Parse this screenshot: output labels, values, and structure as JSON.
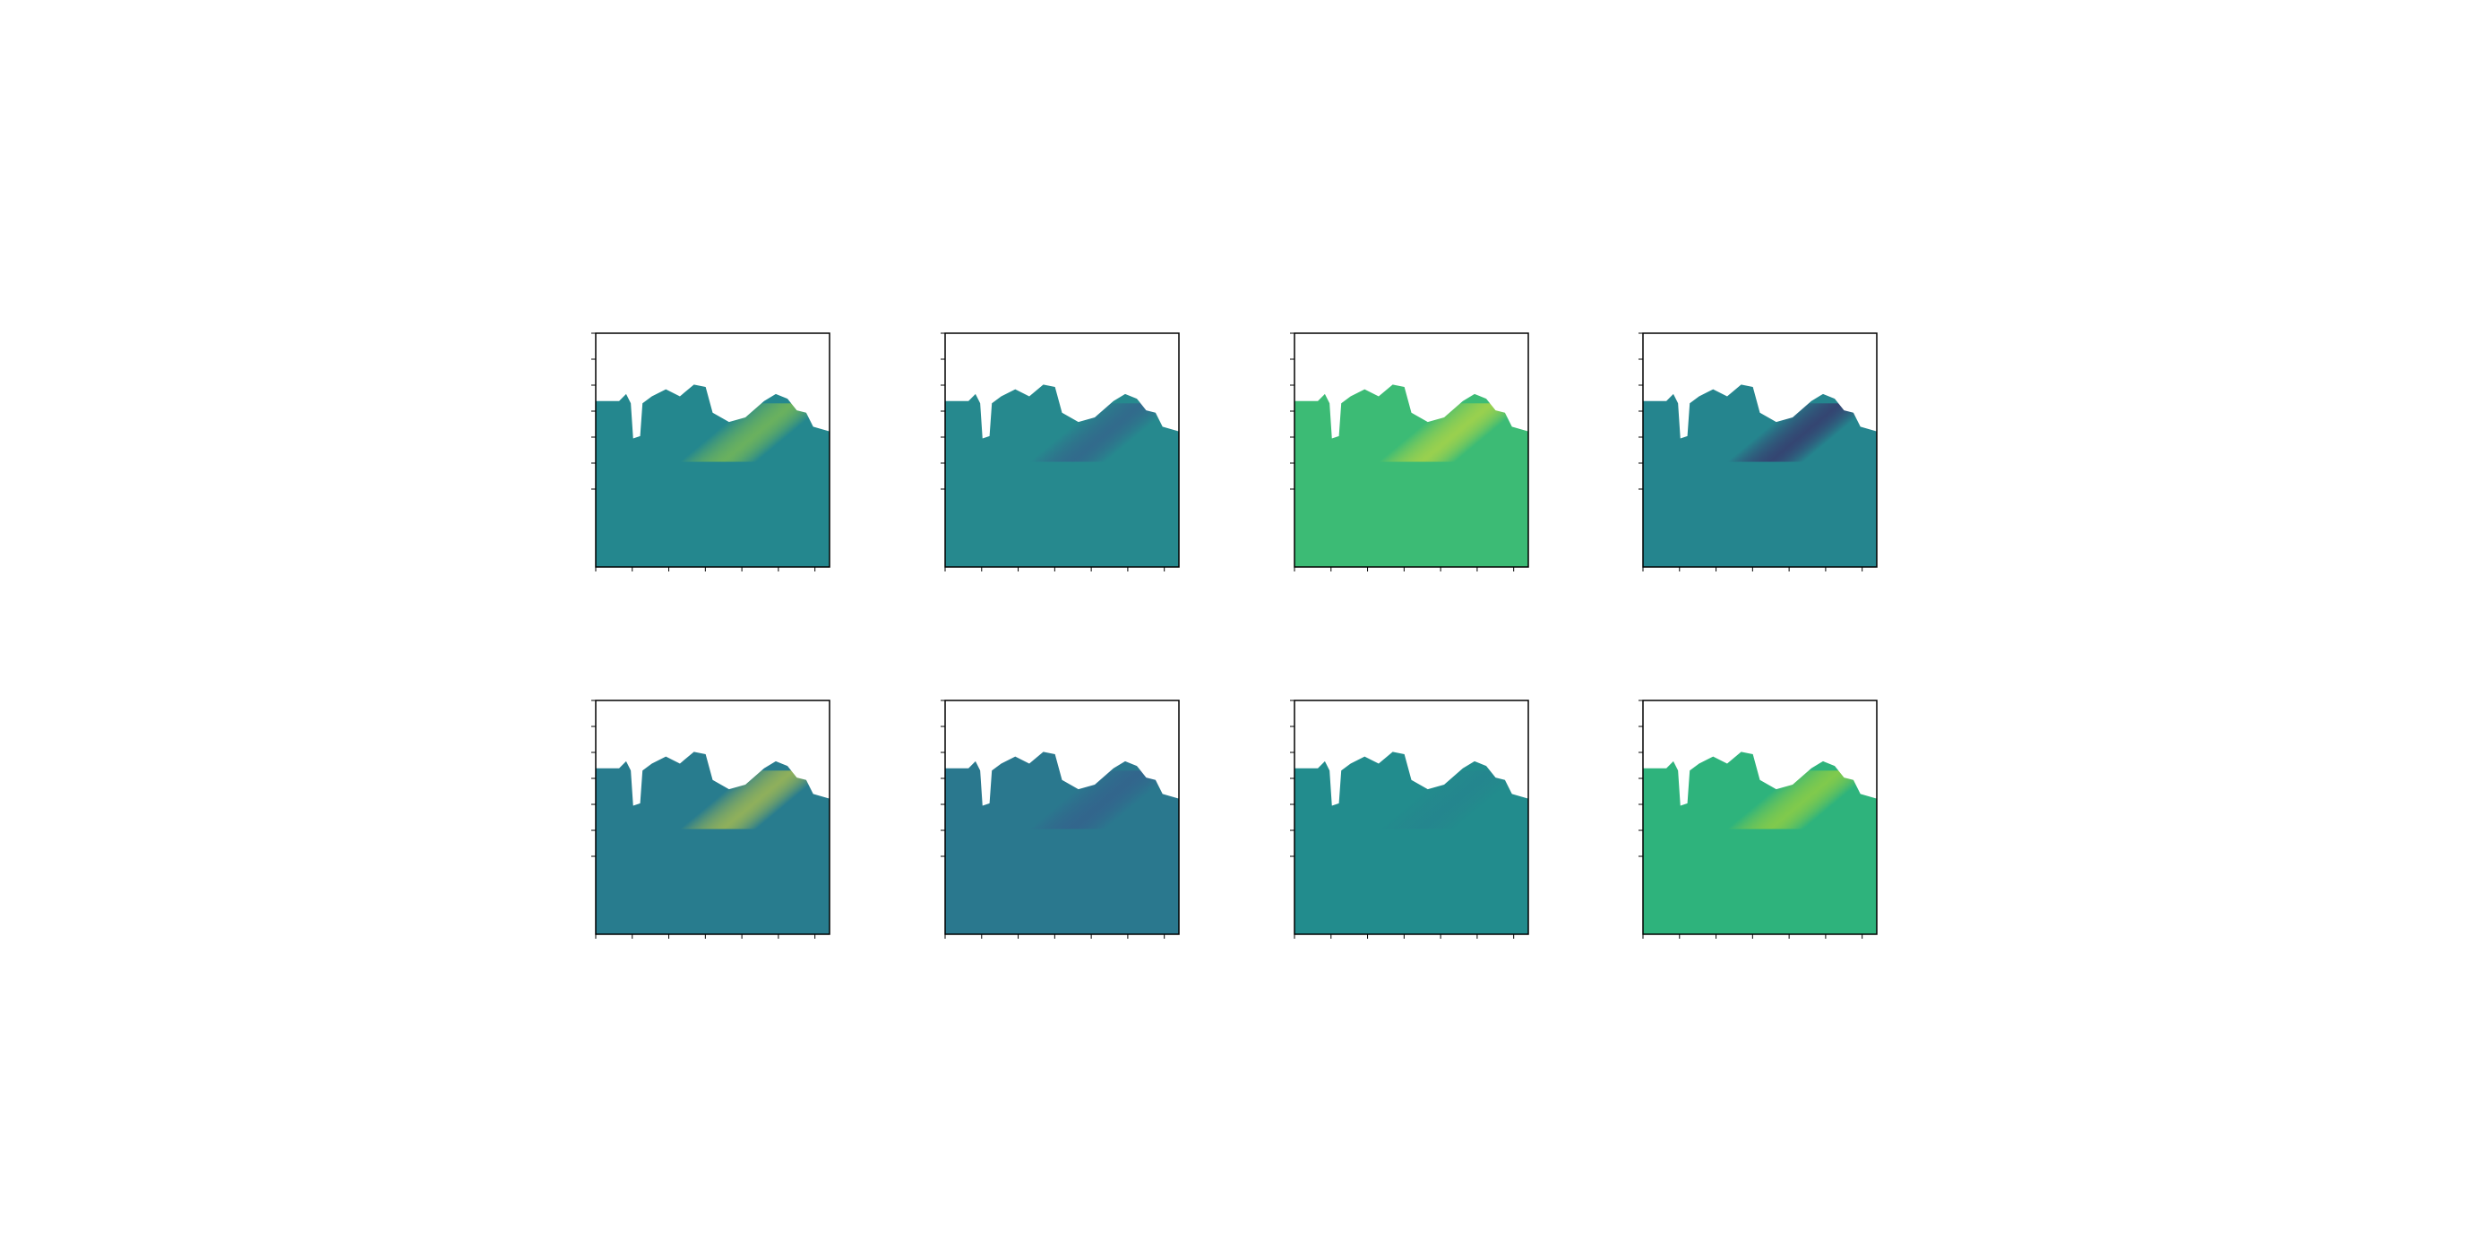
{
  "chart_data": [
    {
      "type": "heatmap",
      "color": "#24878e",
      "accent": "#b5de2b"
    },
    {
      "type": "heatmap",
      "color": "#26898e",
      "accent": "#3e4a89"
    },
    {
      "type": "heatmap",
      "color": "#3cbb75",
      "accent": "#fde725"
    },
    {
      "type": "heatmap",
      "color": "#25858e",
      "accent": "#440154"
    },
    {
      "type": "heatmap",
      "color": "#287c8e",
      "accent": "#fde725"
    },
    {
      "type": "heatmap",
      "color": "#2a788e",
      "accent": "#3b528b"
    },
    {
      "type": "heatmap",
      "color": "#228c8d",
      "accent": "#27808e"
    },
    {
      "type": "heatmap",
      "color": "#2eb37c",
      "accent": "#d8e219"
    }
  ]
}
